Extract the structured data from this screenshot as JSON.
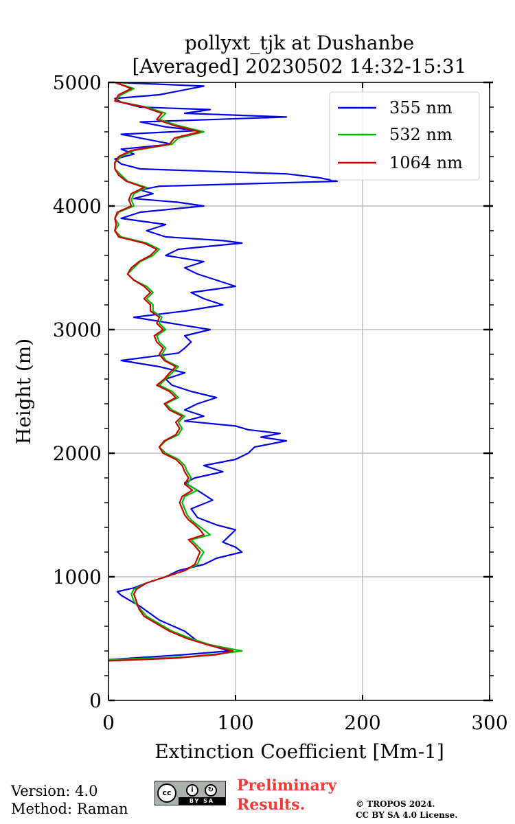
{
  "chart_data": {
    "type": "line",
    "title": "pollyxt_tjk at Dushanbe",
    "subtitle": "[Averaged] 20230502 14:32-15:31",
    "xlabel": "Extinction Coefficient [Mm-1]",
    "ylabel": "Height (m)",
    "xlim": [
      0,
      300
    ],
    "ylim": [
      0,
      5000
    ],
    "xticks": [
      "0",
      "100",
      "200",
      "300"
    ],
    "yticks": [
      "0",
      "1000",
      "2000",
      "3000",
      "4000",
      "5000"
    ],
    "grid": true,
    "legend_position": "top-right",
    "series": [
      {
        "name": "355 nm",
        "color": "#0000ee",
        "height": [
          330,
          370,
          400,
          430,
          480,
          560,
          650,
          760,
          850,
          880,
          910,
          950,
          1000,
          1050,
          1100,
          1150,
          1200,
          1240,
          1280,
          1330,
          1380,
          1420,
          1480,
          1550,
          1620,
          1700,
          1760,
          1800,
          1850,
          1900,
          1950,
          2000,
          2050,
          2100,
          2130,
          2160,
          2190,
          2220,
          2260,
          2300,
          2350,
          2400,
          2450,
          2500,
          2550,
          2600,
          2650,
          2700,
          2750,
          2810,
          2850,
          2900,
          2950,
          3000,
          3050,
          3100,
          3150,
          3200,
          3250,
          3300,
          3350,
          3400,
          3450,
          3500,
          3550,
          3600,
          3650,
          3700,
          3720,
          3750,
          3800,
          3850,
          3900,
          3950,
          4000,
          4030,
          4060,
          4100,
          4130,
          4160,
          4200,
          4230,
          4260,
          4300,
          4340,
          4380,
          4420,
          4460,
          4500,
          4540,
          4580,
          4610,
          4640,
          4680,
          4720,
          4750,
          4780,
          4800,
          4840,
          4870,
          4900,
          4940,
          4970,
          5000
        ],
        "values": [
          0,
          60,
          95,
          85,
          70,
          60,
          40,
          25,
          10,
          7,
          20,
          30,
          45,
          55,
          75,
          85,
          105,
          100,
          90,
          95,
          100,
          85,
          70,
          65,
          82,
          70,
          60,
          68,
          90,
          75,
          100,
          110,
          115,
          140,
          120,
          135,
          110,
          100,
          60,
          75,
          60,
          70,
          85,
          65,
          50,
          45,
          60,
          40,
          10,
          55,
          60,
          65,
          60,
          80,
          50,
          20,
          60,
          90,
          75,
          65,
          100,
          85,
          70,
          60,
          75,
          45,
          55,
          105,
          90,
          45,
          30,
          45,
          10,
          25,
          75,
          55,
          20,
          35,
          25,
          40,
          180,
          165,
          140,
          25,
          10,
          5,
          20,
          10,
          50,
          30,
          10,
          70,
          45,
          25,
          140,
          60,
          80,
          25,
          10,
          5,
          40,
          60,
          75,
          5
        ]
      },
      {
        "name": "532 nm",
        "color": "#00bb00",
        "height": [
          330,
          350,
          380,
          400,
          420,
          450,
          500,
          560,
          620,
          680,
          740,
          800,
          860,
          900,
          950,
          1000,
          1050,
          1100,
          1150,
          1200,
          1250,
          1300,
          1340,
          1380,
          1420,
          1460,
          1500,
          1550,
          1600,
          1650,
          1700,
          1750,
          1800,
          1850,
          1900,
          1950,
          2000,
          2050,
          2100,
          2150,
          2200,
          2250,
          2300,
          2350,
          2400,
          2450,
          2500,
          2550,
          2600,
          2650,
          2700,
          2750,
          2800,
          2850,
          2900,
          2950,
          3000,
          3050,
          3100,
          3150,
          3200,
          3250,
          3300,
          3350,
          3400,
          3450,
          3500,
          3550,
          3600,
          3650,
          3700,
          3750,
          3800,
          3850,
          3900,
          3950,
          4000,
          4050,
          4100,
          4150,
          4200,
          4250,
          4300,
          4350,
          4400,
          4450,
          4500,
          4550,
          4600,
          4650,
          4700,
          4750,
          4800,
          4850,
          4900,
          4950,
          5000
        ],
        "values": [
          0,
          60,
          90,
          105,
          95,
          80,
          65,
          50,
          40,
          30,
          25,
          20,
          18,
          20,
          30,
          45,
          60,
          70,
          72,
          75,
          70,
          65,
          80,
          75,
          70,
          65,
          62,
          60,
          58,
          60,
          70,
          62,
          65,
          62,
          60,
          55,
          45,
          40,
          45,
          55,
          58,
          55,
          60,
          50,
          45,
          55,
          50,
          40,
          45,
          50,
          55,
          45,
          42,
          45,
          40,
          38,
          45,
          40,
          42,
          35,
          35,
          30,
          35,
          30,
          20,
          15,
          20,
          25,
          35,
          40,
          30,
          10,
          5,
          8,
          5,
          8,
          20,
          18,
          20,
          30,
          15,
          10,
          5,
          5,
          10,
          20,
          50,
          55,
          75,
          55,
          40,
          45,
          30,
          5,
          10,
          20,
          5
        ]
      },
      {
        "name": "1064 nm",
        "color": "#cc0000",
        "height": [
          320,
          340,
          370,
          400,
          420,
          450,
          500,
          560,
          620,
          680,
          740,
          800,
          860,
          900,
          950,
          1000,
          1050,
          1100,
          1150,
          1200,
          1250,
          1300,
          1340,
          1380,
          1420,
          1460,
          1500,
          1550,
          1600,
          1650,
          1700,
          1750,
          1800,
          1850,
          1900,
          1950,
          2000,
          2050,
          2100,
          2150,
          2200,
          2250,
          2300,
          2350,
          2400,
          2450,
          2500,
          2550,
          2600,
          2650,
          2700,
          2750,
          2800,
          2850,
          2900,
          2950,
          3000,
          3050,
          3100,
          3150,
          3200,
          3250,
          3300,
          3350,
          3400,
          3450,
          3500,
          3550,
          3600,
          3650,
          3700,
          3750,
          3800,
          3850,
          3900,
          3950,
          4000,
          4050,
          4100,
          4150,
          4200,
          4250,
          4300,
          4350,
          4400,
          4450,
          4500,
          4550,
          4600,
          4650,
          4700,
          4750,
          4800,
          4850,
          4900,
          4950,
          5000
        ],
        "values": [
          0,
          50,
          85,
          98,
          90,
          78,
          62,
          48,
          38,
          28,
          24,
          22,
          20,
          22,
          30,
          45,
          60,
          68,
          70,
          72,
          68,
          63,
          75,
          72,
          68,
          63,
          60,
          58,
          56,
          58,
          66,
          60,
          63,
          60,
          58,
          53,
          43,
          40,
          44,
          53,
          56,
          53,
          58,
          48,
          44,
          53,
          48,
          38,
          44,
          48,
          53,
          44,
          40,
          43,
          38,
          36,
          43,
          38,
          40,
          33,
          33,
          28,
          33,
          28,
          20,
          15,
          18,
          24,
          33,
          38,
          28,
          8,
          5,
          6,
          5,
          7,
          18,
          16,
          18,
          28,
          14,
          8,
          5,
          5,
          8,
          18,
          48,
          52,
          72,
          52,
          38,
          42,
          28,
          5,
          8,
          18,
          5
        ]
      }
    ]
  },
  "footer": {
    "version": "Version: 4.0",
    "method": "Method: Raman",
    "license_badge": "cc",
    "license_badge_strip": "BY SA",
    "preliminary_line1": "Preliminary",
    "preliminary_line2": "Results.",
    "copyright_line1": "© TROPOS 2024.",
    "copyright_line2": "CC BY SA 4.0 License."
  }
}
